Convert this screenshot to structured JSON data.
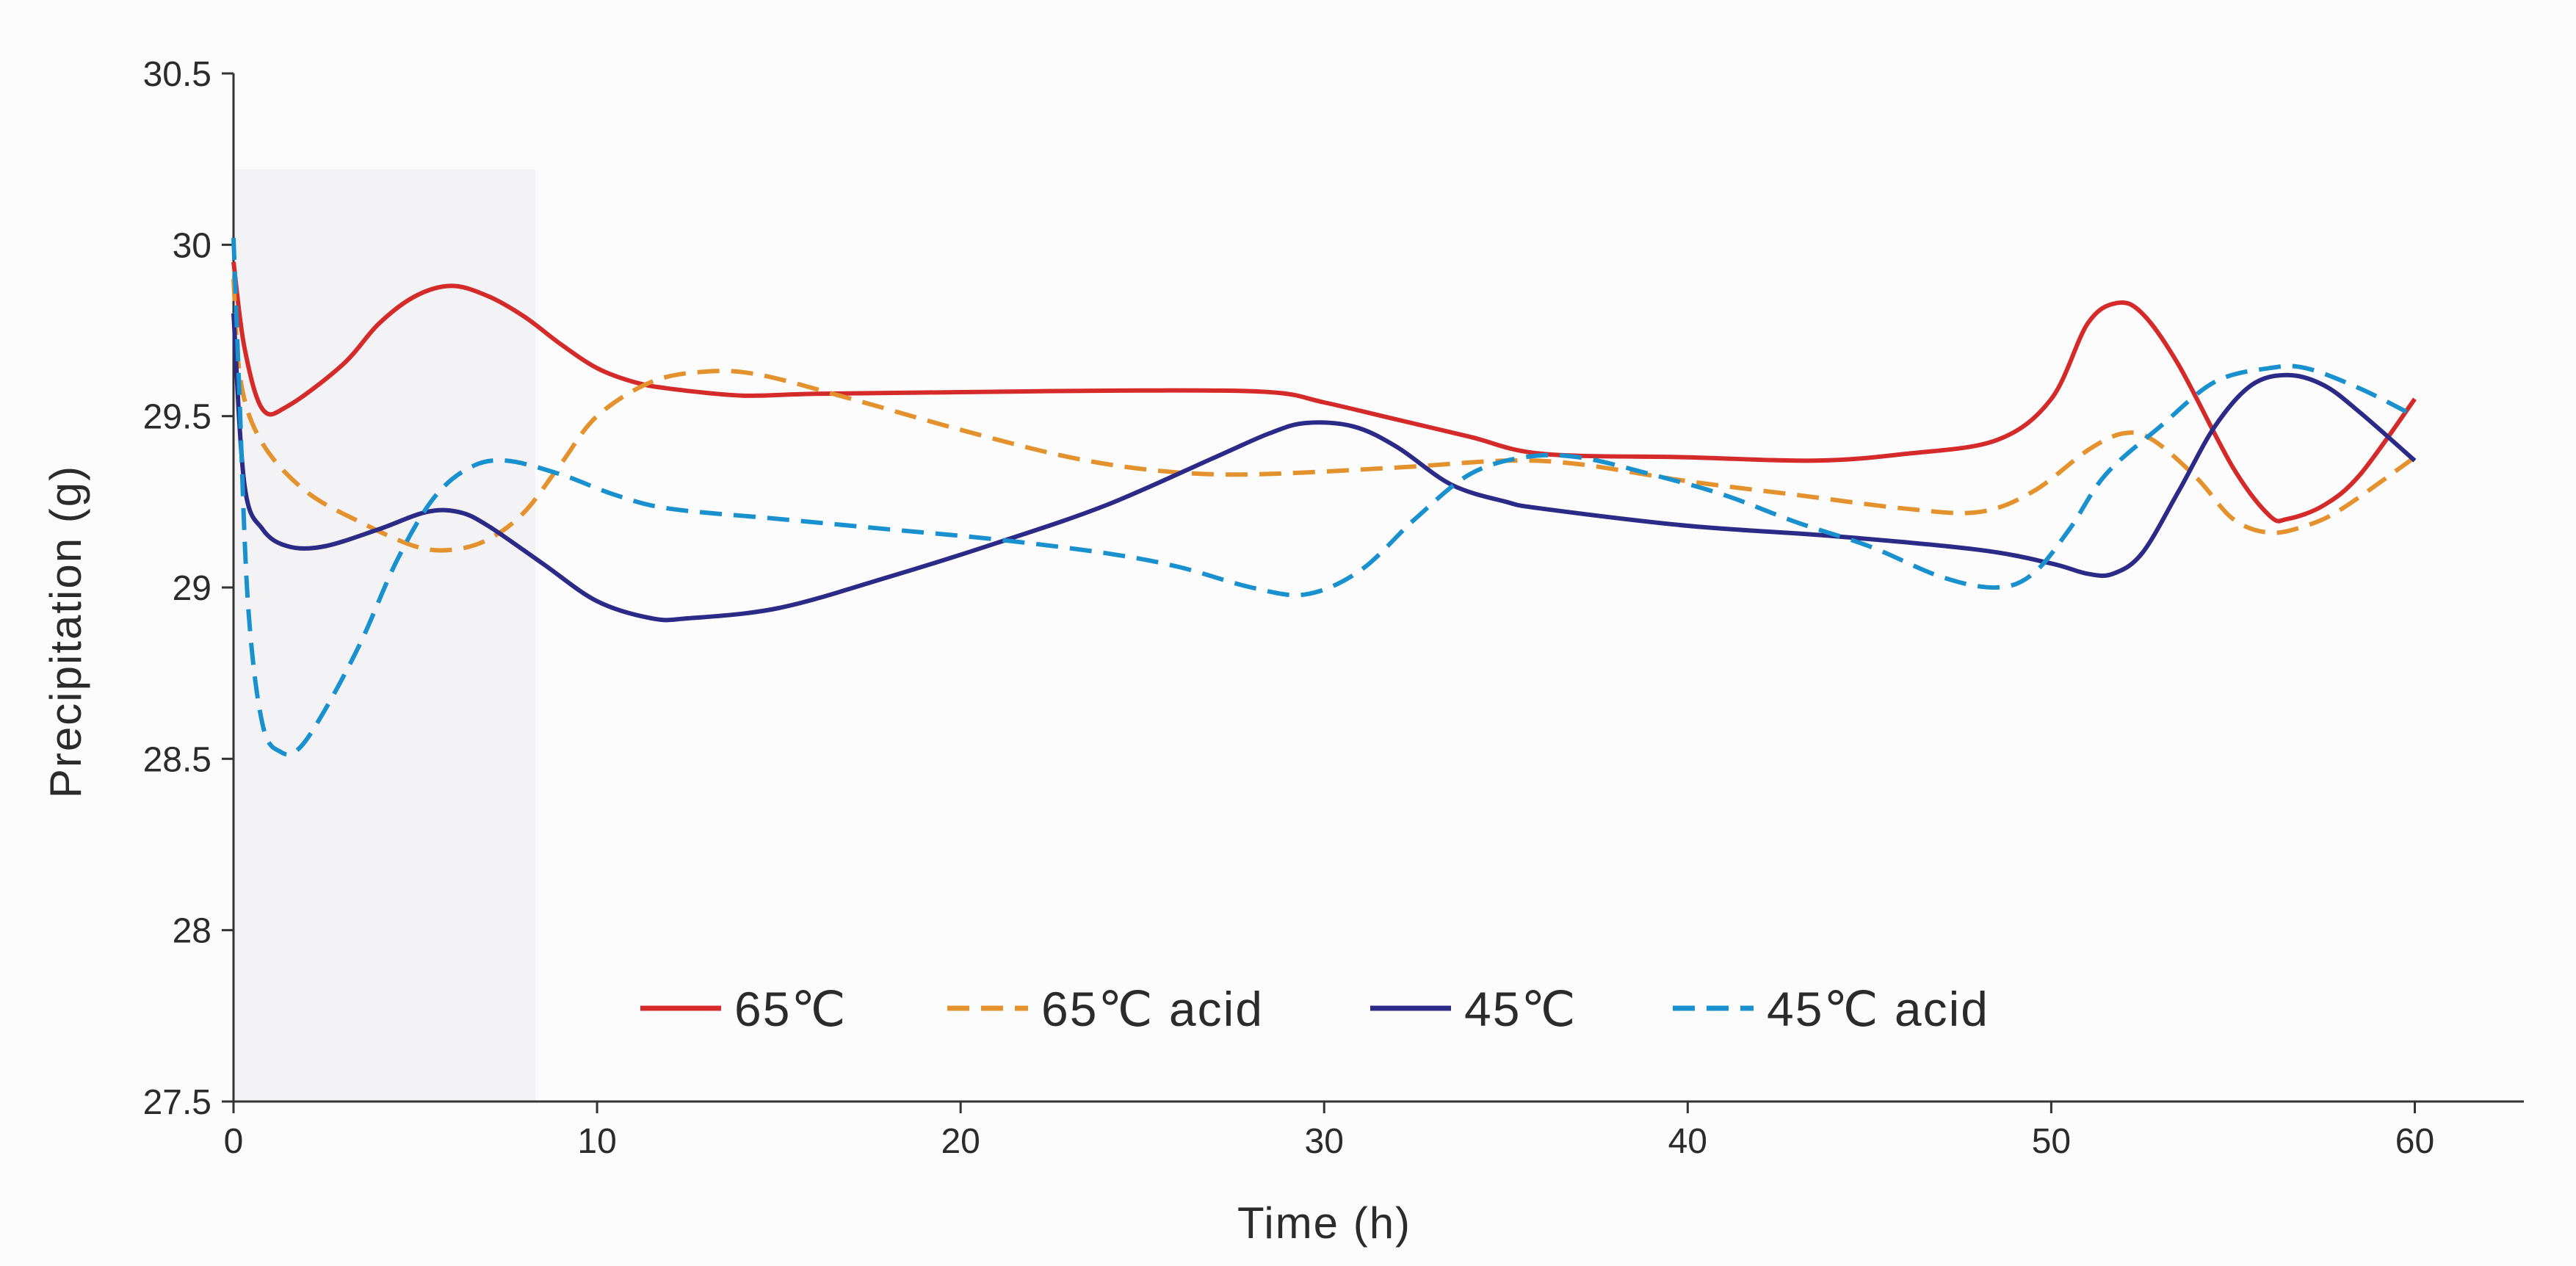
{
  "chart_data": {
    "type": "line",
    "title": "",
    "xlabel": "Time (h)",
    "ylabel": "Precipitation (g)",
    "xlim": [
      0,
      63
    ],
    "ylim": [
      27.5,
      30.5
    ],
    "xticks": [
      0,
      10,
      20,
      30,
      40,
      50,
      60
    ],
    "xtick_labels": [
      "0",
      "10",
      "20",
      "30",
      "40",
      "50",
      "60"
    ],
    "yticks": [
      27.5,
      28,
      28.5,
      29,
      29.5,
      30,
      30.5
    ],
    "ytick_labels": [
      "27.5",
      "28",
      "28.5",
      "29",
      "29.5",
      "30",
      "30.5"
    ],
    "grid": false,
    "shaded_region": {
      "x": [
        0,
        8.3
      ],
      "y": [
        27.5,
        30.22
      ],
      "color": "#f3f2f4"
    },
    "legend": {
      "placement": "bottom-center",
      "entries": [
        "65℃",
        "65℃ acid",
        "45℃",
        "45℃ acid"
      ]
    },
    "series": [
      {
        "name": "65℃",
        "color": "#d42a2a",
        "dash": "solid",
        "points": [
          [
            0,
            29.95
          ],
          [
            0.3,
            29.7
          ],
          [
            0.8,
            29.52
          ],
          [
            1.5,
            29.53
          ],
          [
            3,
            29.65
          ],
          [
            4,
            29.77
          ],
          [
            5,
            29.85
          ],
          [
            6,
            29.88
          ],
          [
            7,
            29.85
          ],
          [
            8,
            29.79
          ],
          [
            9,
            29.71
          ],
          [
            10,
            29.64
          ],
          [
            11,
            29.6
          ],
          [
            12,
            29.58
          ],
          [
            14,
            29.56
          ],
          [
            16,
            29.565
          ],
          [
            20,
            29.57
          ],
          [
            25,
            29.575
          ],
          [
            28.5,
            29.57
          ],
          [
            30,
            29.54
          ],
          [
            32,
            29.49
          ],
          [
            34,
            29.44
          ],
          [
            36,
            29.39
          ],
          [
            40,
            29.38
          ],
          [
            43.5,
            29.37
          ],
          [
            46,
            29.39
          ],
          [
            48.5,
            29.43
          ],
          [
            50,
            29.55
          ],
          [
            51,
            29.77
          ],
          [
            51.8,
            29.83
          ],
          [
            52.5,
            29.8
          ],
          [
            53.5,
            29.65
          ],
          [
            55,
            29.35
          ],
          [
            56,
            29.21
          ],
          [
            56.5,
            29.2
          ],
          [
            57.5,
            29.24
          ],
          [
            58.5,
            29.33
          ],
          [
            60,
            29.55
          ]
        ]
      },
      {
        "name": "65℃ acid",
        "color": "#e4922e",
        "dash": "dashed",
        "points": [
          [
            0,
            29.9
          ],
          [
            0.2,
            29.6
          ],
          [
            0.8,
            29.42
          ],
          [
            2,
            29.28
          ],
          [
            3.5,
            29.19
          ],
          [
            5,
            29.12
          ],
          [
            6,
            29.11
          ],
          [
            7,
            29.14
          ],
          [
            8,
            29.22
          ],
          [
            9,
            29.36
          ],
          [
            10,
            29.5
          ],
          [
            11.5,
            29.6
          ],
          [
            13,
            29.63
          ],
          [
            14.5,
            29.62
          ],
          [
            17,
            29.55
          ],
          [
            20,
            29.46
          ],
          [
            23,
            29.38
          ],
          [
            25.5,
            29.34
          ],
          [
            28,
            29.33
          ],
          [
            32,
            29.35
          ],
          [
            35,
            29.37
          ],
          [
            37,
            29.36
          ],
          [
            40,
            29.31
          ],
          [
            43,
            29.27
          ],
          [
            46,
            29.23
          ],
          [
            48,
            29.22
          ],
          [
            49.5,
            29.28
          ],
          [
            51,
            29.4
          ],
          [
            52,
            29.45
          ],
          [
            52.8,
            29.43
          ],
          [
            54,
            29.32
          ],
          [
            55,
            29.2
          ],
          [
            56,
            29.16
          ],
          [
            57,
            29.18
          ],
          [
            58,
            29.23
          ],
          [
            60,
            29.38
          ]
        ]
      },
      {
        "name": "45℃",
        "color": "#2b2a87",
        "dash": "solid",
        "points": [
          [
            0,
            29.8
          ],
          [
            0.3,
            29.3
          ],
          [
            0.8,
            29.17
          ],
          [
            1.5,
            29.12
          ],
          [
            2.5,
            29.12
          ],
          [
            4,
            29.17
          ],
          [
            5.3,
            29.22
          ],
          [
            6.2,
            29.22
          ],
          [
            7,
            29.18
          ],
          [
            8.5,
            29.07
          ],
          [
            10,
            28.96
          ],
          [
            11.5,
            28.91
          ],
          [
            12.5,
            28.91
          ],
          [
            15,
            28.94
          ],
          [
            18,
            29.03
          ],
          [
            21,
            29.13
          ],
          [
            24,
            29.24
          ],
          [
            27,
            29.38
          ],
          [
            28.5,
            29.45
          ],
          [
            29.5,
            29.48
          ],
          [
            30.8,
            29.47
          ],
          [
            32,
            29.41
          ],
          [
            33.5,
            29.3
          ],
          [
            35,
            29.25
          ],
          [
            36,
            29.23
          ],
          [
            40,
            29.18
          ],
          [
            44,
            29.15
          ],
          [
            48,
            29.11
          ],
          [
            50,
            29.07
          ],
          [
            51,
            29.04
          ],
          [
            51.7,
            29.04
          ],
          [
            52.5,
            29.1
          ],
          [
            53.5,
            29.28
          ],
          [
            54.5,
            29.47
          ],
          [
            55.5,
            29.59
          ],
          [
            56.5,
            29.62
          ],
          [
            57.5,
            29.59
          ],
          [
            58.5,
            29.51
          ],
          [
            60,
            29.37
          ]
        ]
      },
      {
        "name": "45℃ acid",
        "color": "#1a91cf",
        "dash": "dashed",
        "points": [
          [
            0,
            30.02
          ],
          [
            0.15,
            29.6
          ],
          [
            0.4,
            28.95
          ],
          [
            0.8,
            28.6
          ],
          [
            1.3,
            28.52
          ],
          [
            1.8,
            28.53
          ],
          [
            2.5,
            28.64
          ],
          [
            3.5,
            28.84
          ],
          [
            4.5,
            29.08
          ],
          [
            5.5,
            29.26
          ],
          [
            6.5,
            29.35
          ],
          [
            7.5,
            29.37
          ],
          [
            9,
            29.33
          ],
          [
            10.5,
            29.27
          ],
          [
            12,
            29.23
          ],
          [
            15,
            29.2
          ],
          [
            18,
            29.17
          ],
          [
            21,
            29.14
          ],
          [
            24,
            29.1
          ],
          [
            26,
            29.06
          ],
          [
            28,
            29.0
          ],
          [
            29.5,
            28.98
          ],
          [
            31,
            29.05
          ],
          [
            32.5,
            29.2
          ],
          [
            34,
            29.33
          ],
          [
            35.5,
            29.38
          ],
          [
            37,
            29.38
          ],
          [
            39,
            29.33
          ],
          [
            41,
            29.27
          ],
          [
            43,
            29.19
          ],
          [
            45,
            29.12
          ],
          [
            47,
            29.03
          ],
          [
            48.5,
            29.0
          ],
          [
            49.5,
            29.04
          ],
          [
            50.5,
            29.17
          ],
          [
            51.5,
            29.33
          ],
          [
            53,
            29.47
          ],
          [
            54.5,
            29.6
          ],
          [
            56,
            29.64
          ],
          [
            57,
            29.64
          ],
          [
            58.5,
            29.58
          ],
          [
            60,
            29.5
          ]
        ]
      }
    ]
  }
}
